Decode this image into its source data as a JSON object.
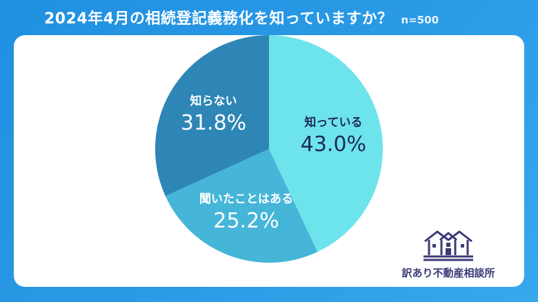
{
  "header": {
    "title": "2024年4月の相続登記義務化を知っていますか？",
    "sample_size": "n=500"
  },
  "chart_data": {
    "type": "pie",
    "title": "2024年4月の相続登記義務化を知っていますか？",
    "slices": [
      {
        "label": "知っている",
        "value": 43.0,
        "value_label": "43.0%",
        "color": "#6de3ec"
      },
      {
        "label": "聞いたことはある",
        "value": 25.2,
        "value_label": "25.2%",
        "color": "#45b5d8"
      },
      {
        "label": "知らない",
        "value": 31.8,
        "value_label": "31.8%",
        "color": "#2d86b6"
      }
    ],
    "start_angle": "12 o'clock",
    "direction": "clockwise"
  },
  "logo": {
    "text": "訳あり不動産相談所",
    "icon": "house-icon"
  },
  "colors": {
    "background": "#2a9ae6",
    "card": "#ffffff",
    "dark_label": "#1e2a5a",
    "light_label": "#ffffff",
    "logo": "#3b3a78"
  }
}
